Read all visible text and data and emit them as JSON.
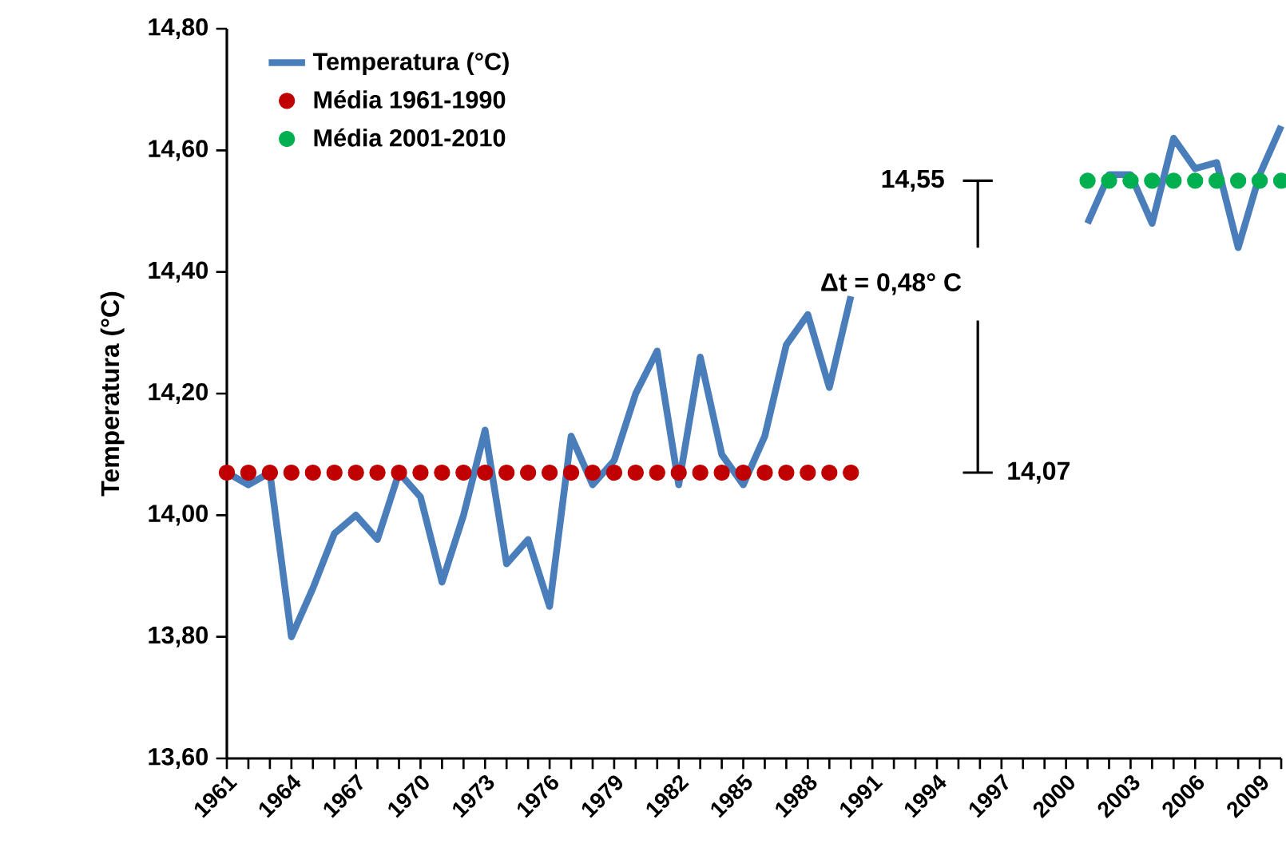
{
  "chart_data": {
    "type": "line",
    "ylabel": "Temperatura (°C)",
    "categories": [
      "1961",
      null,
      null,
      "1964",
      null,
      null,
      "1967",
      null,
      null,
      "1970",
      null,
      null,
      "1973",
      null,
      null,
      "1976",
      null,
      null,
      "1979",
      null,
      null,
      "1982",
      null,
      null,
      "1985",
      null,
      null,
      "1988",
      null,
      null,
      "1991",
      null,
      null,
      "1994",
      null,
      null,
      "1997",
      null,
      null,
      "2000",
      null,
      null,
      "2003",
      null,
      null,
      "2006",
      null,
      null,
      "2009",
      null
    ],
    "series": [
      {
        "name": "Temperatura (°C)",
        "color": "#4a7ebb",
        "marker": "none",
        "values": [
          14.07,
          14.05,
          14.07,
          13.8,
          13.88,
          13.97,
          14.0,
          13.96,
          14.07,
          14.03,
          13.89,
          14.0,
          14.14,
          13.92,
          13.96,
          13.85,
          14.13,
          14.05,
          14.09,
          14.2,
          14.27,
          14.05,
          14.26,
          14.1,
          14.05,
          14.13,
          14.28,
          14.33,
          14.21,
          14.36,
          null,
          null,
          null,
          null,
          null,
          null,
          null,
          null,
          null,
          null,
          14.48,
          14.56,
          14.56,
          14.48,
          14.62,
          14.57,
          14.58,
          14.44,
          14.56,
          14.64
        ]
      },
      {
        "name": "Média 1961-1990",
        "type": "scatter",
        "color": "#c00000",
        "marker": "circle",
        "values": [
          14.07,
          14.07,
          14.07,
          14.07,
          14.07,
          14.07,
          14.07,
          14.07,
          14.07,
          14.07,
          14.07,
          14.07,
          14.07,
          14.07,
          14.07,
          14.07,
          14.07,
          14.07,
          14.07,
          14.07,
          14.07,
          14.07,
          14.07,
          14.07,
          14.07,
          14.07,
          14.07,
          14.07,
          14.07,
          14.07,
          null,
          null,
          null,
          null,
          null,
          null,
          null,
          null,
          null,
          null,
          null,
          null,
          null,
          null,
          null,
          null,
          null,
          null,
          null,
          null
        ]
      },
      {
        "name": "Média 2001-2010",
        "type": "scatter",
        "color": "#00b050",
        "marker": "circle",
        "values": [
          null,
          null,
          null,
          null,
          null,
          null,
          null,
          null,
          null,
          null,
          null,
          null,
          null,
          null,
          null,
          null,
          null,
          null,
          null,
          null,
          null,
          null,
          null,
          null,
          null,
          null,
          null,
          null,
          null,
          null,
          null,
          null,
          null,
          null,
          null,
          null,
          null,
          null,
          null,
          null,
          14.55,
          14.55,
          14.55,
          14.55,
          14.55,
          14.55,
          14.55,
          14.55,
          14.55,
          14.55
        ]
      }
    ],
    "ylim": [
      13.6,
      14.8
    ],
    "yticks": [
      {
        "value": 13.6,
        "label": "13,60"
      },
      {
        "value": 13.8,
        "label": "13,80"
      },
      {
        "value": 14.0,
        "label": "14,00"
      },
      {
        "value": 14.2,
        "label": "14,20"
      },
      {
        "value": 14.4,
        "label": "14,40"
      },
      {
        "value": 14.6,
        "label": "14,60"
      },
      {
        "value": 14.8,
        "label": "14,80"
      }
    ],
    "annotations": [
      "14,55",
      "Δt = 0,48° C",
      "14,07"
    ],
    "legend": "top left",
    "grid": false
  }
}
